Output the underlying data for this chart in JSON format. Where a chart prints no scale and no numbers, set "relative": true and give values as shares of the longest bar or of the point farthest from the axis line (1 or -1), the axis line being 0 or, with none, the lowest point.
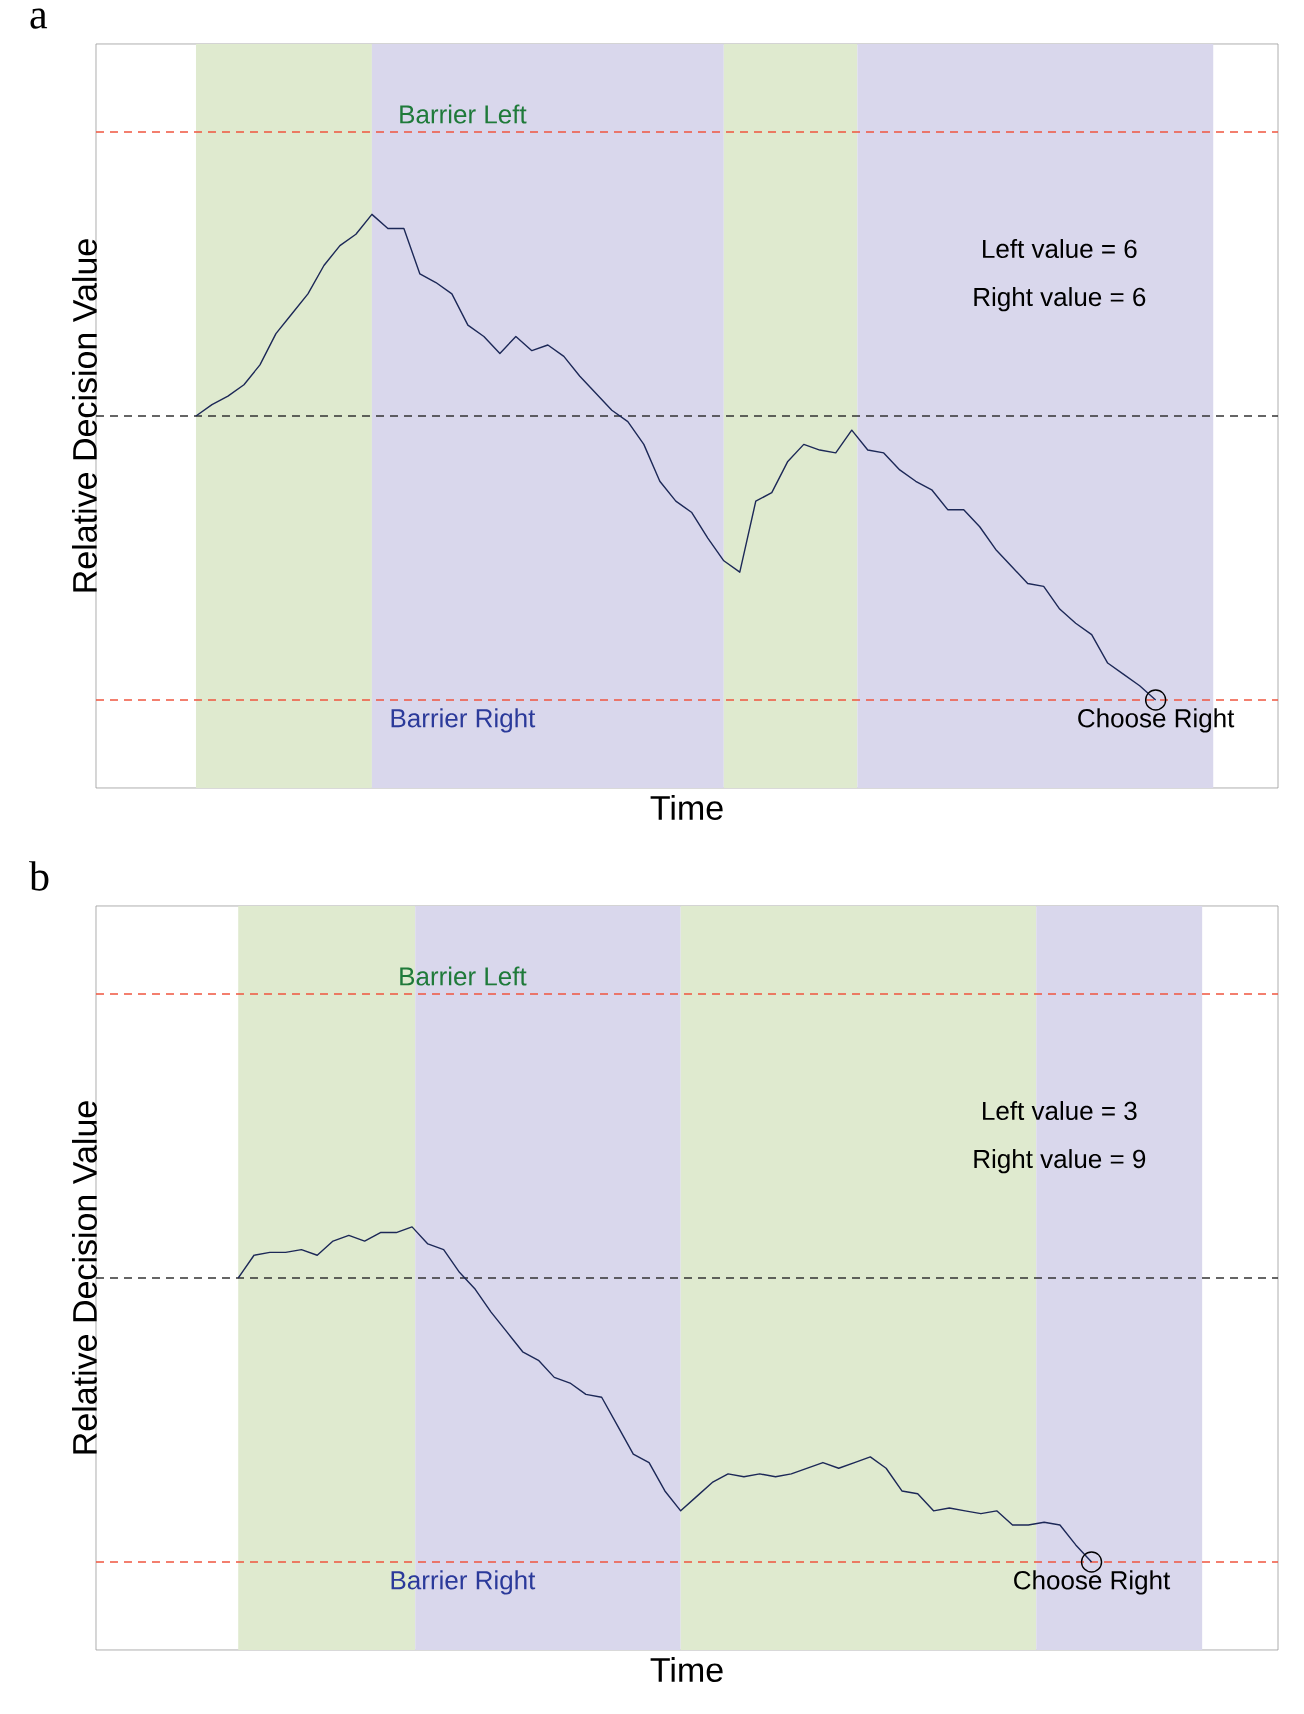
{
  "chart_data": [
    {
      "type": "line",
      "title": "a",
      "xlabel": "Time",
      "ylabel": "Relative Decision Value",
      "relative": true,
      "categories": [
        null,
        null,
        null,
        null,
        null,
        null,
        null,
        null,
        null,
        null,
        null,
        null,
        null,
        null,
        null,
        null,
        null,
        null,
        null,
        null,
        null,
        null,
        null,
        null,
        null,
        null,
        null,
        null,
        null,
        null,
        null,
        null,
        null,
        null,
        null,
        null,
        null,
        null,
        null,
        null,
        null,
        null,
        null,
        null,
        null,
        null,
        null,
        null,
        null,
        null,
        null,
        null,
        null,
        null,
        null,
        null,
        null,
        null,
        null,
        null,
        null
      ],
      "series": [
        {
          "color": "#1c2857",
          "values": [
            0,
            0.04,
            0.07,
            0.11,
            0.18,
            0.29,
            0.36,
            0.43,
            0.53,
            0.6,
            0.64,
            0.71,
            0.66,
            0.66,
            0.5,
            0.47,
            0.43,
            0.32,
            0.28,
            0.22,
            0.28,
            0.23,
            0.25,
            0.21,
            0.14,
            0.08,
            0.02,
            -0.02,
            -0.1,
            -0.23,
            -0.3,
            -0.34,
            -0.43,
            -0.51,
            -0.55,
            -0.3,
            -0.27,
            -0.16,
            -0.1,
            -0.12,
            -0.13,
            -0.05,
            -0.12,
            -0.13,
            -0.19,
            -0.23,
            -0.26,
            -0.33,
            -0.33,
            -0.39,
            -0.47,
            -0.53,
            -0.59,
            -0.6,
            -0.68,
            -0.73,
            -0.77,
            -0.87,
            -0.91,
            -0.95,
            -1
          ]
        }
      ],
      "ref_lines": [
        {
          "axis": "y",
          "value": 1,
          "label": "Barrier Left",
          "color": "#f0553f",
          "line_style": "dashed"
        },
        {
          "axis": "y",
          "value": 0,
          "color": "#333333",
          "line_style": "dashed"
        },
        {
          "axis": "y",
          "value": -1,
          "label": "Barrier Right",
          "color": "#f0553f",
          "line_style": "dashed"
        }
      ],
      "annotations": [
        "Left value = 6",
        "Right value = 6",
        {
          "text": "Choose Right",
          "y": -1
        }
      ]
    },
    {
      "type": "line",
      "title": "b",
      "xlabel": "Time",
      "ylabel": "Relative Decision Value",
      "relative": true,
      "categories": [
        null,
        null,
        null,
        null,
        null,
        null,
        null,
        null,
        null,
        null,
        null,
        null,
        null,
        null,
        null,
        null,
        null,
        null,
        null,
        null,
        null,
        null,
        null,
        null,
        null,
        null,
        null,
        null,
        null,
        null,
        null,
        null,
        null,
        null,
        null,
        null,
        null,
        null,
        null,
        null,
        null,
        null,
        null,
        null,
        null,
        null,
        null,
        null,
        null,
        null,
        null,
        null,
        null,
        null,
        null
      ],
      "series": [
        {
          "color": "#1c2857",
          "values": [
            0,
            0.08,
            0.09,
            0.09,
            0.1,
            0.08,
            0.13,
            0.15,
            0.13,
            0.16,
            0.16,
            0.18,
            0.12,
            0.1,
            0.02,
            -0.04,
            -0.12,
            -0.19,
            -0.26,
            -0.29,
            -0.35,
            -0.37,
            -0.41,
            -0.42,
            -0.52,
            -0.62,
            -0.65,
            -0.75,
            -0.82,
            -0.77,
            -0.72,
            -0.69,
            -0.7,
            -0.69,
            -0.7,
            -0.69,
            -0.67,
            -0.65,
            -0.67,
            -0.65,
            -0.63,
            -0.67,
            -0.75,
            -0.76,
            -0.82,
            -0.81,
            -0.82,
            -0.83,
            -0.82,
            -0.87,
            -0.87,
            -0.86,
            -0.87,
            -0.94,
            -1
          ]
        }
      ],
      "ref_lines": [
        {
          "axis": "y",
          "value": 1,
          "label": "Barrier Left",
          "color": "#f0553f",
          "line_style": "dashed"
        },
        {
          "axis": "y",
          "value": 0,
          "color": "#333333",
          "line_style": "dashed"
        },
        {
          "axis": "y",
          "value": -1,
          "label": "Barrier Right",
          "color": "#f0553f",
          "line_style": "dashed"
        }
      ],
      "annotations": [
        "Left value = 3",
        "Right value = 9",
        {
          "text": "Choose Right",
          "y": -1
        }
      ]
    }
  ]
}
